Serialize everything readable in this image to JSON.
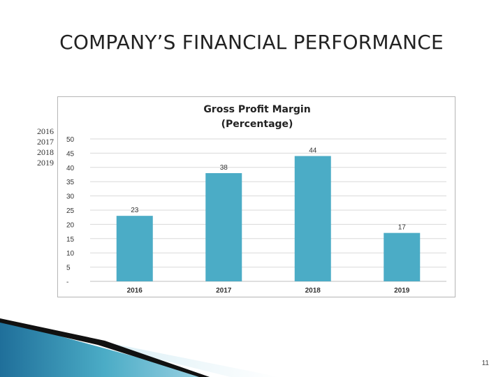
{
  "slide": {
    "title": "COMPANY’S FINANCIAL PERFORMANCE",
    "year_list": [
      "2016",
      "2017",
      "2018",
      "2019"
    ],
    "page_number": "11"
  },
  "chart_data": {
    "type": "bar",
    "title_line1": "Gross Profit Margin",
    "title_line2": "(Percentage)",
    "categories": [
      "2016",
      "2017",
      "2018",
      "2019"
    ],
    "values": [
      23,
      38,
      44,
      17
    ],
    "data_labels": [
      "23",
      "38",
      "44",
      "17"
    ],
    "yticks": [
      "-",
      "5",
      "10",
      "15",
      "20",
      "25",
      "30",
      "35",
      "40",
      "45",
      "50"
    ],
    "ylim": [
      0,
      50
    ],
    "grid": true,
    "bar_color": "#4bacc6",
    "gridline_color": "#d9d9d9"
  }
}
